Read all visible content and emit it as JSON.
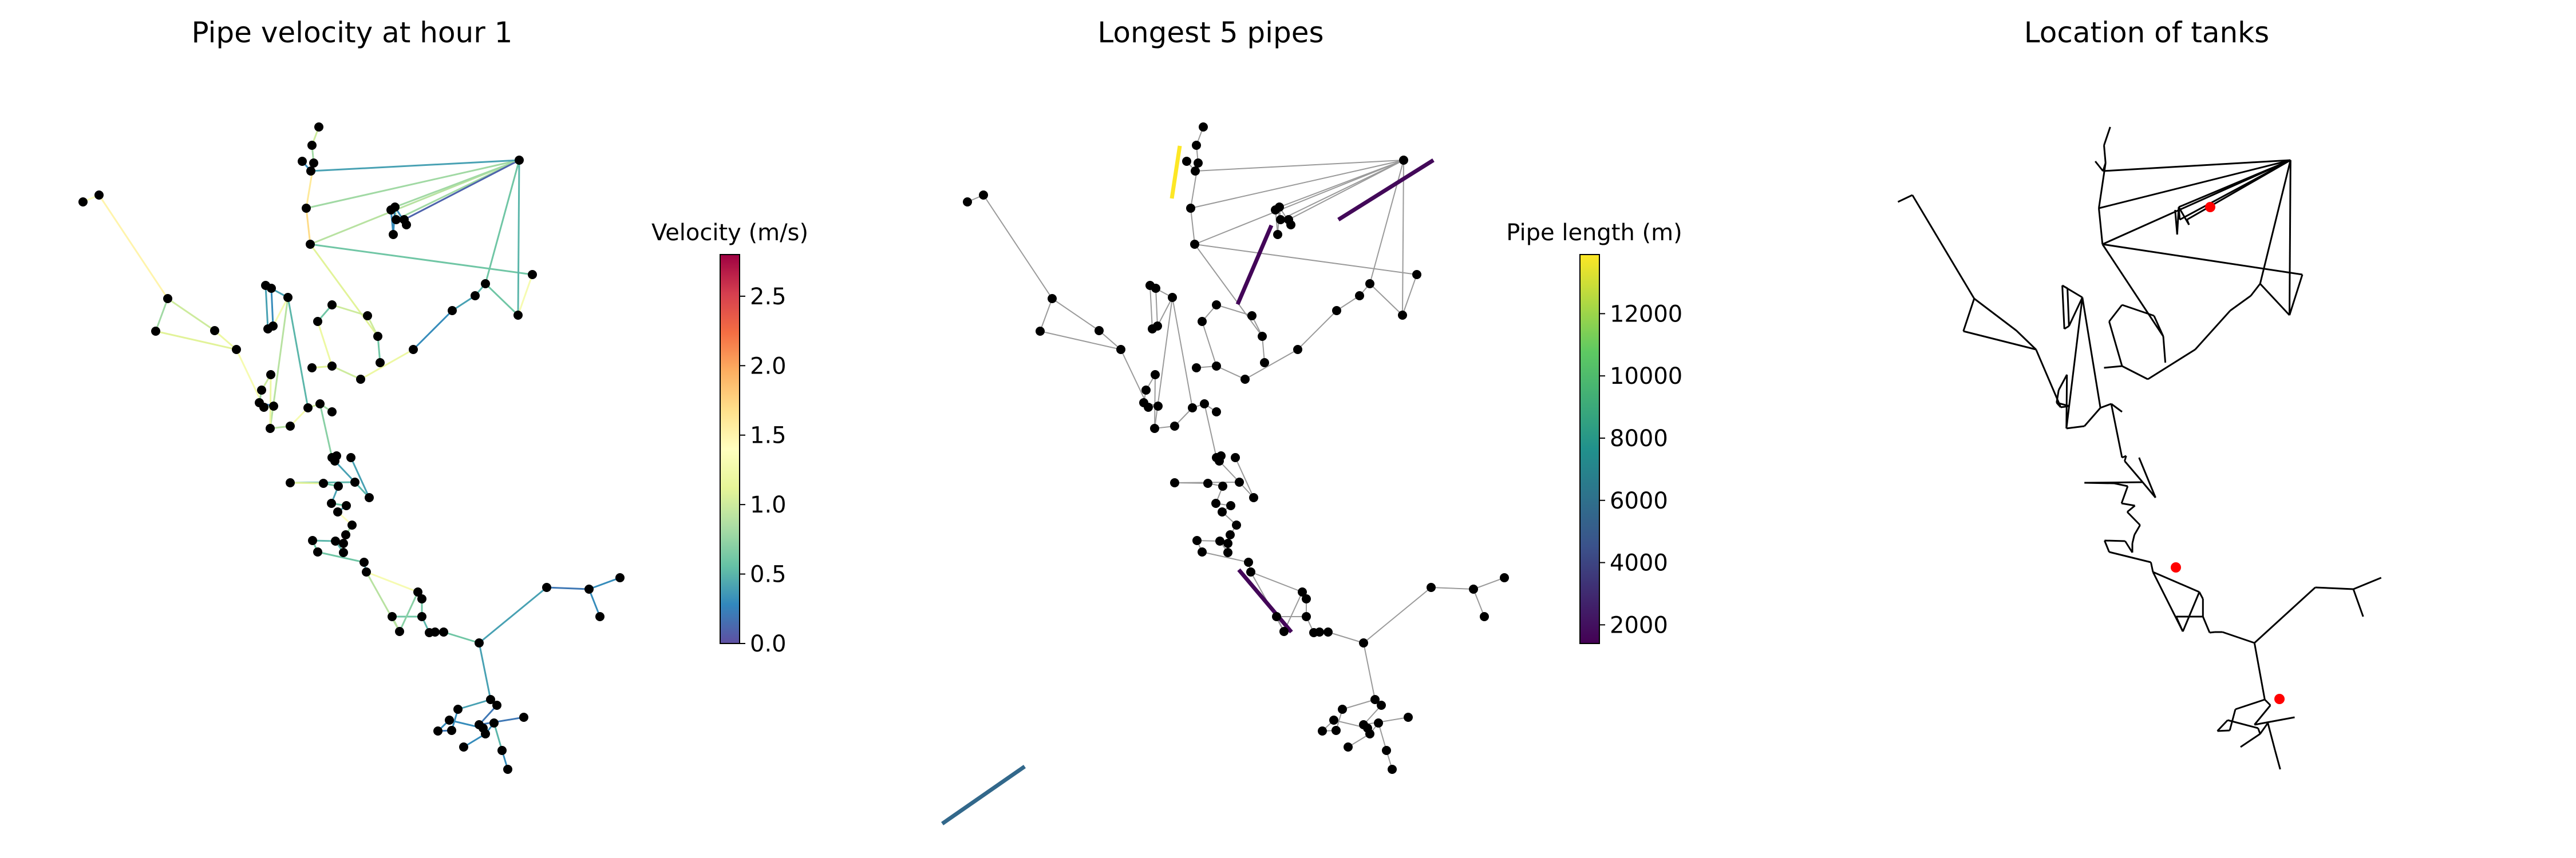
{
  "panels": {
    "velocity": {
      "title": "Pipe velocity at hour 1",
      "colorbar": {
        "label": "Velocity (m/s)",
        "ticks": [
          "0.0",
          "0.5",
          "1.0",
          "1.5",
          "2.0",
          "2.5"
        ],
        "colormap": "Spectral_r",
        "min": 0.0,
        "max": 2.8
      }
    },
    "longest": {
      "title": "Longest 5 pipes",
      "colorbar": {
        "label": "Pipe length (m)",
        "ticks": [
          "2000",
          "4000",
          "6000",
          "8000",
          "10000",
          "12000"
        ],
        "colormap": "viridis",
        "min": 1400,
        "max": 13900
      }
    },
    "tanks": {
      "title": "Location of tanks",
      "tank_color": "#ff0000",
      "tank_count": 3
    }
  },
  "colors": {
    "node": "#000000",
    "pipe_gray": "#9a9a9a",
    "pipe_black": "#000000",
    "tank": "#ff0000"
  }
}
